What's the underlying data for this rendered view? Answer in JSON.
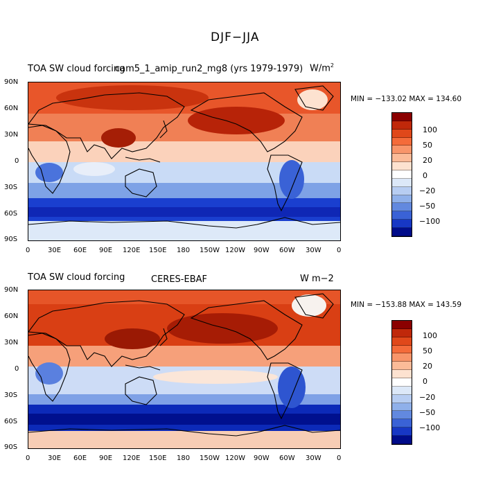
{
  "figure": {
    "title": "DJF−JJA"
  },
  "panels": [
    {
      "left": "TOA SW cloud forcing",
      "center": "cam5_1_amip_run2_mg8 (yrs 1979-1979)",
      "right_unit_base": "W/m",
      "right_unit_sup": "2",
      "min_label": "MIN = −133.02",
      "max_label": "MAX = 134.60"
    },
    {
      "left": "TOA SW cloud forcing",
      "center": "CERES-EBAF",
      "right_unit": "W m−2",
      "min_label": "MIN = −153.88",
      "max_label": "MAX = 143.59"
    }
  ],
  "axes": {
    "lat_labels": [
      "90N",
      "60N",
      "30N",
      "0",
      "30S",
      "60S",
      "90S"
    ],
    "lon_labels": [
      "0",
      "30E",
      "60E",
      "90E",
      "120E",
      "150E",
      "180",
      "150W",
      "120W",
      "90W",
      "60W",
      "30W",
      "0"
    ]
  },
  "colorbar": {
    "tick_labels": [
      "100",
      "50",
      "20",
      "0",
      "−20",
      "−50",
      "−100"
    ],
    "colors": [
      "#8b0000",
      "#c0280a",
      "#e0481a",
      "#f46b3a",
      "#f8956a",
      "#fbbb98",
      "#fde2d0",
      "#ffffff",
      "#dce8f8",
      "#b7cdf2",
      "#8fb0ea",
      "#6289df",
      "#3a62d6",
      "#1737c4",
      "#000c8a"
    ]
  }
}
